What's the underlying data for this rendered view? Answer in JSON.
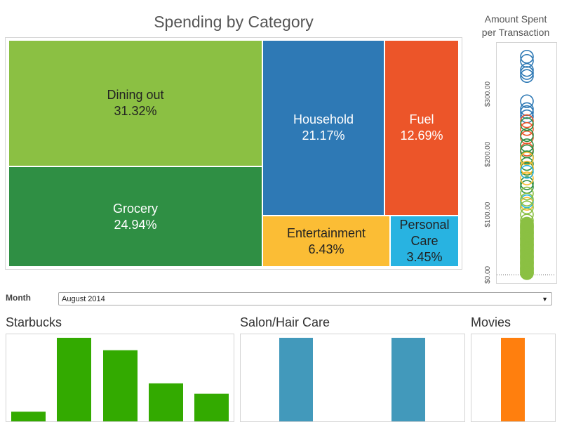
{
  "treemap": {
    "title": "Spending by Category",
    "tiles": [
      {
        "name": "Dining out",
        "pct": "31.32%",
        "value": 31.32,
        "color": "#8bc043",
        "text_color": "#222222"
      },
      {
        "name": "Grocery",
        "pct": "24.94%",
        "value": 24.94,
        "color": "#2f8f44",
        "text_color": "#ffffff"
      },
      {
        "name": "Household",
        "pct": "21.17%",
        "value": 21.17,
        "color": "#2e79b5",
        "text_color": "#ffffff"
      },
      {
        "name": "Fuel",
        "pct": "12.69%",
        "value": 12.69,
        "color": "#ec5529",
        "text_color": "#ffffff"
      },
      {
        "name": "Entertainment",
        "pct": "6.43%",
        "value": 6.43,
        "color": "#fbbd35",
        "text_color": "#222222"
      },
      {
        "name": "Personal\nCare",
        "pct": "3.45%",
        "value": 3.45,
        "color": "#28b3e1",
        "text_color": "#222222"
      }
    ]
  },
  "scatter": {
    "title": "Amount Spent\nper Transaction",
    "y_ticks": [
      "$0.00",
      "$100.00",
      "$200.00",
      "$300.00"
    ],
    "y_tick_values": [
      0,
      100,
      200,
      300
    ],
    "ylim": [
      -10,
      385
    ]
  },
  "month_filter": {
    "label": "Month",
    "value": "August 2014"
  },
  "chart_data": [
    {
      "type": "treemap",
      "title": "Spending by Category",
      "categories": [
        "Dining out",
        "Grocery",
        "Household",
        "Fuel",
        "Entertainment",
        "Personal Care"
      ],
      "values": [
        31.32,
        24.94,
        21.17,
        12.69,
        6.43,
        3.45
      ]
    },
    {
      "type": "scatter",
      "title": "Amount Spent per Transaction",
      "y_ticks": [
        "$0.00",
        "$100.00",
        "$200.00",
        "$300.00"
      ],
      "series": [
        {
          "color": "#2e79b5",
          "y": [
            362,
            355,
            340,
            335,
            330,
            288,
            275,
            270,
            263
          ]
        },
        {
          "color": "#ec5529",
          "y": [
            255,
            242,
            228,
            208
          ]
        },
        {
          "color": "#2f8f44",
          "y": [
            250,
            232,
            215,
            205,
            195,
            184,
            176,
            152,
            146
          ]
        },
        {
          "color": "#fbbd35",
          "y": [
            193,
            178,
            160,
            118
          ]
        },
        {
          "color": "#28b3e1",
          "y": [
            171,
            122
          ]
        },
        {
          "color": "#8bc043",
          "y": [
            135,
            125,
            112,
            100,
            90,
            80,
            70,
            60,
            50,
            40,
            30,
            20,
            10,
            3
          ]
        }
      ]
    },
    {
      "type": "bar",
      "title": "Starbucks",
      "values": [
        14,
        121,
        103,
        55,
        40
      ],
      "ylim": [
        0,
        121
      ],
      "color": "#33aa00"
    },
    {
      "type": "bar",
      "title": "Salon/Hair Care",
      "values": [
        1,
        1
      ],
      "ylim": [
        0,
        1
      ],
      "color": "#4299bb"
    },
    {
      "type": "bar",
      "title": "Movies",
      "values": [
        1
      ],
      "ylim": [
        0,
        1
      ],
      "color": "#ff7f0e"
    }
  ]
}
